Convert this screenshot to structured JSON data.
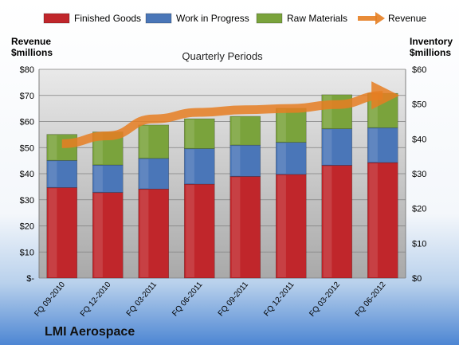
{
  "chart_data": {
    "type": "bar",
    "title": "Quarterly Periods",
    "company": "LMI Aerospace",
    "ylabel_left": [
      "Revenue",
      "$millions"
    ],
    "ylabel_right": [
      "Inventory",
      "$millions"
    ],
    "categories": [
      "FQ 09-2010",
      "FQ 12-2010",
      "FQ 03-2011",
      "FQ 06-2011",
      "FQ 09-2011",
      "FQ 12-2011",
      "FQ 03-2012",
      "FQ 06-2012"
    ],
    "left_axis": {
      "min": 0,
      "max": 80,
      "step": 10,
      "ticks": [
        "$-",
        "$10",
        "$20",
        "$30",
        "$40",
        "$50",
        "$60",
        "$70",
        "$80"
      ]
    },
    "right_axis": {
      "min": 0,
      "max": 60,
      "step": 10,
      "ticks": [
        "$0",
        "$10",
        "$20",
        "$30",
        "$40",
        "$50",
        "$60"
      ]
    },
    "grid": true,
    "legend_position": "top",
    "series": [
      {
        "name": "Finished Goods",
        "kind": "stacked-bar",
        "axis": "right",
        "color": "#c0262b",
        "values": [
          26,
          24.6,
          25.6,
          27,
          29.2,
          29.8,
          32.4,
          33.2
        ]
      },
      {
        "name": "Work in Progress",
        "kind": "stacked-bar",
        "axis": "right",
        "color": "#4a76b8",
        "values": [
          7.8,
          7.9,
          8.8,
          10.2,
          9,
          9.2,
          10.5,
          10
        ]
      },
      {
        "name": "Raw Materials",
        "kind": "stacked-bar",
        "axis": "right",
        "color": "#7aa33c",
        "values": [
          7.5,
          9.5,
          9.6,
          8.6,
          8.3,
          9.8,
          9.8,
          9.9
        ]
      },
      {
        "name": "Revenue",
        "kind": "line",
        "axis": "left",
        "color": "#e67e22",
        "values": [
          51.5,
          54.5,
          61,
          63.5,
          64.5,
          65,
          66.5,
          70
        ]
      }
    ]
  }
}
